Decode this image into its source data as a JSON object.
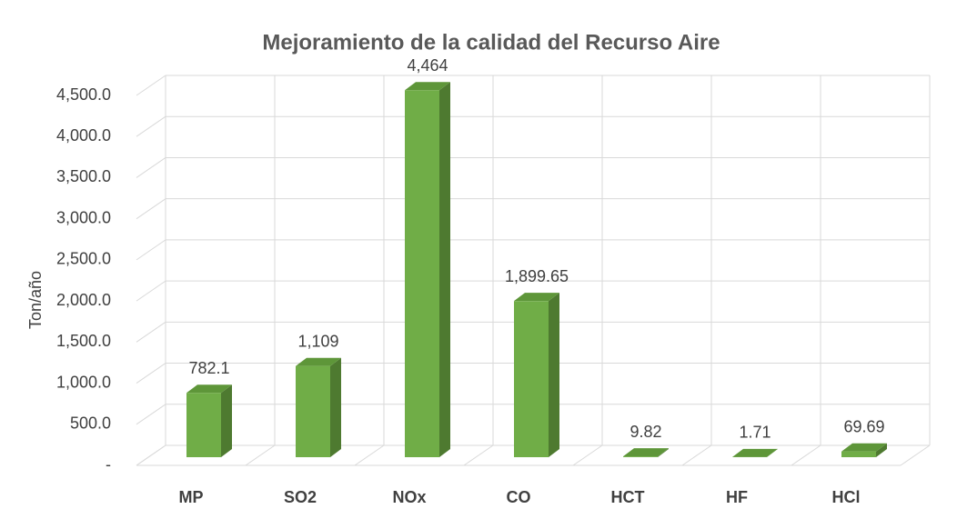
{
  "chart_data": {
    "type": "bar3d",
    "title": "Mejoramiento de la calidad del Recurso Aire",
    "y_label": "Ton/año",
    "categories": [
      "MP",
      "SO2",
      "NOx",
      "CO",
      "HCT",
      "HF",
      "HCl"
    ],
    "values": [
      782.1,
      1109,
      4464,
      1899.65,
      9.82,
      1.71,
      69.69
    ],
    "value_labels": [
      "782.1",
      "1,109",
      "4,464",
      "1,899.65",
      "9.82",
      "1.71",
      "69.69"
    ],
    "color": "#70ad47",
    "ylim": [
      0,
      4500
    ],
    "yticks": [
      {
        "value": 0,
        "label": "-"
      },
      {
        "value": 500,
        "label": "500.0"
      },
      {
        "value": 1000,
        "label": "1,000.0"
      },
      {
        "value": 1500,
        "label": "1,500.0"
      },
      {
        "value": 2000,
        "label": "2,000.0"
      },
      {
        "value": 2500,
        "label": "2,500.0"
      },
      {
        "value": 3000,
        "label": "3,000.0"
      },
      {
        "value": 3500,
        "label": "3,500.0"
      },
      {
        "value": 4000,
        "label": "4,000.0"
      },
      {
        "value": 4500,
        "label": "4,500.0"
      }
    ],
    "grid": true
  }
}
